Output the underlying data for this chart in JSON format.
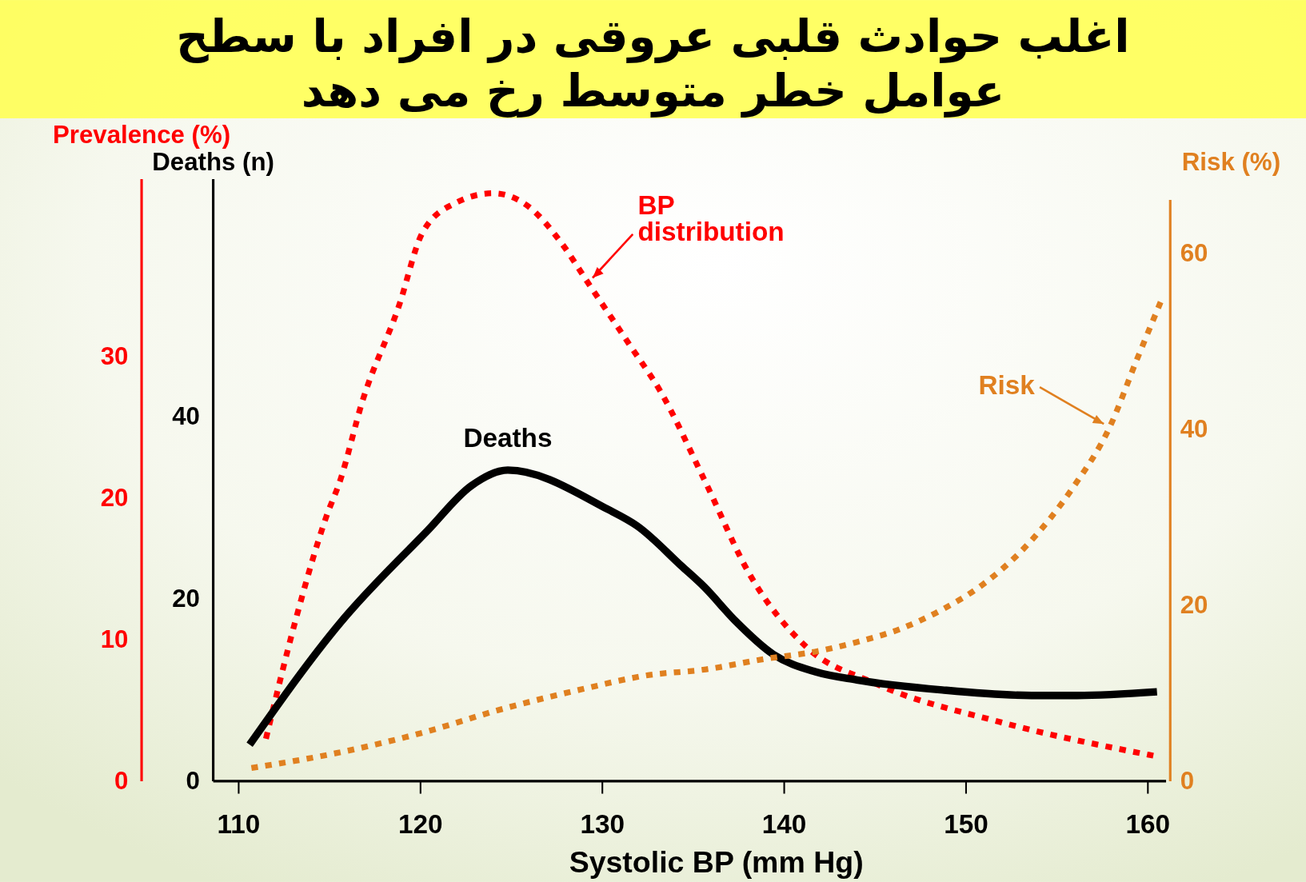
{
  "chart_data": {
    "type": "line",
    "title": "اغلب حوادث قلبی عروقی در افراد با سطح عوامل خطر متوسط رخ می دهد",
    "xlabel": "Systolic BP (mm Hg)",
    "ylabel": "Prevalence (%)",
    "y2label": "Deaths (n)",
    "y3label": "Risk (%)",
    "xlim": [
      108.6,
      161
    ],
    "xticks": [
      110,
      120,
      130,
      140,
      150,
      160
    ],
    "ylim": [
      0,
      42.5
    ],
    "yticks": [
      0,
      10,
      20,
      30
    ],
    "y2lim": [
      0,
      66
    ],
    "y2ticks": [
      0,
      20,
      40
    ],
    "y3lim": [
      0,
      66
    ],
    "y3ticks": [
      0,
      20,
      40,
      60
    ],
    "series": [
      {
        "name": "BP distribution",
        "color": "#ff0000",
        "line_style": "dotted",
        "x": [
          111.5,
          113.2,
          114.8,
          115.6,
          116.8,
          118.8,
          120.1,
          121.9,
          124.0,
          125.9,
          127.8,
          129.2,
          131.5,
          133.2,
          135.6,
          138.1,
          141.2,
          145.0,
          151.8,
          160.3
        ],
        "values": [
          3.0,
          11.7,
          18.6,
          21.3,
          26.8,
          33.5,
          38.7,
          40.8,
          41.5,
          40.6,
          37.9,
          35.2,
          30.8,
          27.5,
          21.3,
          14.6,
          9.5,
          6.9,
          4.2,
          1.8
        ]
      },
      {
        "name": "Deaths",
        "color": "#000000",
        "axis": "y2",
        "line_style": "solid",
        "x": [
          110.6,
          115.6,
          120.4,
          122.8,
          124.8,
          130.3,
          131.9,
          134.4,
          135.6,
          137.3,
          139.4,
          141.7,
          144.0,
          148.7,
          153.6,
          156.1,
          160.5
        ],
        "values": [
          4.0,
          17.4,
          27.5,
          32.4,
          34.1,
          29.8,
          28.0,
          23.5,
          21.3,
          17.6,
          13.9,
          12.0,
          11.1,
          10.0,
          9.4,
          9.4,
          9.8
        ]
      },
      {
        "name": "Risk",
        "color": "#e08020",
        "axis": "y3",
        "line_style": "dotted",
        "x": [
          110.7,
          115.4,
          120.1,
          124.5,
          129.0,
          132.4,
          135.7,
          139.0,
          141.7,
          144.0,
          146.4,
          148.7,
          150.9,
          153.4,
          155.9,
          157.9,
          159.4,
          160.7
        ],
        "values": [
          1.5,
          3.2,
          5.5,
          8.2,
          10.5,
          12.0,
          12.7,
          13.9,
          14.7,
          15.8,
          17.3,
          19.5,
          22.3,
          26.9,
          33.4,
          40.2,
          47.9,
          54.4
        ]
      }
    ]
  }
}
